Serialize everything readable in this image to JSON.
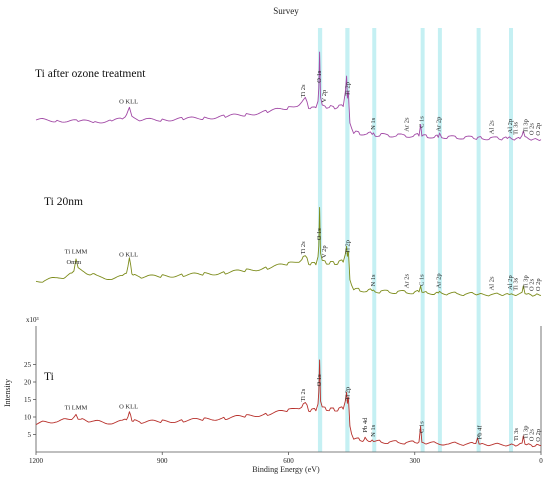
{
  "chart_data": {
    "type": "line",
    "title": "Survey",
    "xlabel": "Binding Energy (eV)",
    "ylabel": "Intensity",
    "yunit": "x10³",
    "xlim": [
      1200,
      0
    ],
    "xticks": [
      1200,
      900,
      600,
      300,
      0
    ],
    "yticks": [
      5,
      10,
      15,
      20,
      25
    ],
    "highlight_bands": [
      [
        530,
        520
      ],
      [
        465,
        455
      ],
      [
        401,
        397
      ],
      [
        286,
        283
      ],
      [
        245,
        240
      ],
      [
        153,
        149
      ],
      [
        76,
        72
      ]
    ],
    "highlight_color": "#bfeef2",
    "series": [
      {
        "name": "Ti after ozone treatment",
        "color": "#a24aa6",
        "x": [
          1200,
          1150,
          1100,
          1060,
          1020,
          995,
          985,
          978,
          972,
          966,
          950,
          900,
          850,
          800,
          750,
          700,
          650,
          600,
          575,
          565,
          560,
          556,
          552,
          545,
          535,
          530,
          528,
          526,
          524,
          520,
          510,
          500,
          490,
          480,
          470,
          465,
          462,
          460,
          458,
          456,
          454,
          450,
          445,
          440,
          430,
          410,
          401,
          398,
          394,
          380,
          360,
          340,
          320,
          300,
          290,
          286,
          283,
          280,
          270,
          250,
          244,
          241,
          236,
          220,
          200,
          180,
          160,
          150,
          140,
          120,
          100,
          90,
          80,
          75,
          70,
          60,
          50,
          45,
          42,
          38,
          30,
          20,
          10,
          0
        ],
        "y": [
          8.0,
          7.9,
          7.6,
          7.5,
          7.8,
          8.2,
          9.6,
          11.5,
          9.2,
          8.4,
          8.0,
          8.1,
          8.3,
          8.6,
          9.0,
          9.6,
          10.4,
          11.5,
          12.5,
          13.4,
          14.8,
          12.9,
          11.6,
          11.3,
          11.9,
          13.0,
          17.5,
          27.0,
          15.0,
          11.9,
          11.8,
          11.7,
          11.6,
          11.8,
          12.3,
          15.5,
          21.0,
          13.8,
          16.5,
          11.2,
          7.6,
          5.2,
          4.6,
          4.4,
          4.2,
          4.0,
          4.3,
          3.9,
          3.8,
          3.7,
          3.6,
          3.6,
          3.5,
          3.5,
          3.8,
          6.4,
          3.7,
          3.4,
          3.3,
          3.3,
          3.3,
          4.0,
          3.2,
          3.1,
          3.0,
          3.0,
          2.9,
          2.9,
          2.8,
          2.8,
          2.7,
          2.7,
          2.8,
          3.1,
          2.7,
          2.6,
          2.7,
          3.6,
          4.8,
          3.3,
          2.6,
          2.5,
          2.4,
          2.4
        ]
      },
      {
        "name": "Ti 20nm",
        "color": "#7d8c1c",
        "x": [
          1200,
          1180,
          1150,
          1130,
          1115,
          1110,
          1105,
          1100,
          1090,
          1075,
          1068,
          1062,
          1050,
          1020,
          995,
          985,
          978,
          972,
          966,
          950,
          900,
          850,
          800,
          750,
          700,
          650,
          600,
          575,
          565,
          560,
          556,
          552,
          545,
          535,
          530,
          528,
          526,
          524,
          520,
          510,
          500,
          490,
          480,
          470,
          465,
          462,
          460,
          458,
          456,
          454,
          450,
          445,
          440,
          430,
          410,
          401,
          398,
          394,
          380,
          360,
          340,
          320,
          300,
          290,
          286,
          283,
          280,
          270,
          250,
          244,
          241,
          236,
          220,
          200,
          180,
          160,
          150,
          140,
          120,
          100,
          90,
          80,
          75,
          70,
          60,
          50,
          45,
          42,
          38,
          30,
          20,
          10,
          0
        ],
        "y": [
          5.5,
          5.9,
          6.5,
          7.0,
          7.8,
          8.8,
          11.8,
          9.8,
          8.4,
          7.8,
          7.3,
          8.1,
          6.8,
          6.5,
          6.9,
          8.3,
          12.0,
          8.1,
          7.2,
          6.9,
          7.1,
          7.4,
          7.7,
          8.1,
          8.7,
          9.5,
          10.6,
          11.5,
          12.3,
          13.4,
          11.9,
          10.9,
          10.5,
          10.8,
          12.2,
          16.2,
          26.3,
          14.2,
          11.2,
          11.0,
          10.9,
          10.8,
          11.0,
          11.5,
          13.0,
          16.0,
          12.4,
          14.6,
          10.3,
          6.4,
          4.2,
          3.5,
          3.3,
          3.1,
          3.0,
          3.2,
          2.9,
          2.8,
          2.7,
          2.6,
          2.6,
          2.5,
          2.5,
          2.7,
          4.2,
          2.6,
          2.4,
          2.3,
          2.3,
          2.3,
          2.8,
          2.2,
          2.1,
          2.1,
          2.0,
          2.0,
          2.0,
          1.9,
          1.9,
          1.8,
          1.8,
          1.9,
          2.1,
          1.8,
          1.8,
          1.9,
          2.8,
          4.0,
          2.4,
          1.8,
          1.7,
          1.7,
          1.6
        ]
      },
      {
        "name": "Ti",
        "color": "#b8312c",
        "x": [
          1200,
          1180,
          1150,
          1130,
          1115,
          1105,
          1100,
          1090,
          1075,
          1050,
          1020,
          995,
          985,
          978,
          972,
          966,
          950,
          900,
          850,
          800,
          750,
          700,
          650,
          600,
          575,
          565,
          560,
          556,
          552,
          545,
          535,
          530,
          528,
          526,
          524,
          520,
          510,
          500,
          490,
          480,
          470,
          465,
          462,
          460,
          458,
          456,
          454,
          450,
          445,
          440,
          430,
          420,
          418,
          414,
          410,
          401,
          398,
          394,
          380,
          360,
          340,
          320,
          300,
          290,
          286,
          283,
          280,
          270,
          250,
          220,
          200,
          180,
          160,
          155,
          151,
          147,
          140,
          120,
          100,
          80,
          70,
          60,
          50,
          45,
          42,
          38,
          30,
          20,
          10,
          0
        ],
        "y": [
          8.1,
          8.5,
          8.9,
          9.2,
          9.6,
          10.4,
          9.7,
          9.2,
          8.9,
          8.6,
          8.4,
          8.7,
          9.6,
          11.1,
          9.3,
          8.8,
          8.6,
          8.7,
          9.0,
          9.3,
          9.7,
          10.2,
          10.9,
          11.8,
          12.8,
          13.3,
          14.6,
          13.0,
          12.1,
          11.8,
          12.2,
          13.3,
          17.6,
          25.9,
          15.0,
          12.5,
          12.3,
          12.2,
          12.1,
          12.2,
          12.6,
          14.2,
          17.4,
          13.6,
          16.0,
          11.7,
          7.7,
          4.9,
          3.9,
          3.7,
          3.5,
          3.4,
          4.4,
          3.3,
          3.2,
          3.3,
          3.1,
          3.0,
          2.9,
          2.8,
          2.8,
          2.7,
          2.7,
          2.9,
          7.3,
          2.8,
          2.6,
          2.5,
          2.5,
          2.4,
          2.4,
          2.3,
          2.3,
          2.6,
          3.8,
          2.5,
          2.2,
          2.2,
          2.1,
          2.1,
          2.0,
          2.0,
          2.1,
          2.9,
          4.2,
          2.6,
          2.0,
          1.9,
          1.8,
          1.8
        ]
      }
    ],
    "annotations": [
      {
        "label": "O 1s",
        "x": 528,
        "series": 0
      },
      {
        "label": "Ti 2p",
        "x": 460,
        "series": 0
      },
      {
        "label": "Ti 2s",
        "x": 566,
        "series": 0
      },
      {
        "label": "V 2p",
        "x": 516,
        "series": 0
      },
      {
        "label": "O KLL",
        "x": 980,
        "series": 0
      },
      {
        "label": "N 1s",
        "x": 399,
        "series": 0
      },
      {
        "label": "Ar 2s",
        "x": 320,
        "series": 0
      },
      {
        "label": "C 1s",
        "x": 284,
        "series": 0
      },
      {
        "label": "Ar 2p",
        "x": 243,
        "series": 0
      },
      {
        "label": "Al 2s",
        "x": 118,
        "series": 0
      },
      {
        "label": "Al 2p",
        "x": 74,
        "series": 0
      },
      {
        "label": "Ti 3s",
        "x": 60,
        "series": 0
      },
      {
        "label": "Ti 3p",
        "x": 37,
        "series": 0
      },
      {
        "label": "O 2s",
        "x": 23,
        "series": 0
      },
      {
        "label": "O 2p",
        "x": 7,
        "series": 0
      },
      {
        "label": "O 1s",
        "x": 528,
        "series": 1
      },
      {
        "label": "Ti 2p",
        "x": 460,
        "series": 1
      },
      {
        "label": "Ti 2s",
        "x": 566,
        "series": 1
      },
      {
        "label": "V 2p",
        "x": 516,
        "series": 1
      },
      {
        "label": "Ti LMM",
        "x": 1105,
        "series": 1
      },
      {
        "label": "O KLL",
        "x": 980,
        "series": 1
      },
      {
        "label": "Omm",
        "x": 1110,
        "series": 1
      },
      {
        "label": "N 1s",
        "x": 399,
        "series": 1
      },
      {
        "label": "Ar 2s",
        "x": 320,
        "series": 1
      },
      {
        "label": "C 1s",
        "x": 284,
        "series": 1
      },
      {
        "label": "Ar 2p",
        "x": 243,
        "series": 1
      },
      {
        "label": "Al 2s",
        "x": 118,
        "series": 1
      },
      {
        "label": "Al 2p",
        "x": 74,
        "series": 1
      },
      {
        "label": "Ti 3s",
        "x": 60,
        "series": 1
      },
      {
        "label": "Ti 3p",
        "x": 37,
        "series": 1
      },
      {
        "label": "O 2s",
        "x": 23,
        "series": 1
      },
      {
        "label": "O 2p",
        "x": 7,
        "series": 1
      },
      {
        "label": "O 1s",
        "x": 528,
        "series": 2
      },
      {
        "label": "Ti 2p",
        "x": 460,
        "series": 2
      },
      {
        "label": "Ti 2s",
        "x": 566,
        "series": 2
      },
      {
        "label": "Ti LMM",
        "x": 1105,
        "series": 2
      },
      {
        "label": "O KLL",
        "x": 980,
        "series": 2
      },
      {
        "label": "Pb 4d",
        "x": 418,
        "series": 2
      },
      {
        "label": "N 1s",
        "x": 399,
        "series": 2
      },
      {
        "label": "C 1s",
        "x": 284,
        "series": 2
      },
      {
        "label": "Pb 4f",
        "x": 146,
        "series": 2
      },
      {
        "label": "Ti 3s",
        "x": 60,
        "series": 2
      },
      {
        "label": "Ti 3p",
        "x": 37,
        "series": 2
      },
      {
        "label": "O 2s",
        "x": 23,
        "series": 2
      },
      {
        "label": "O 2p",
        "x": 7,
        "series": 2
      }
    ]
  }
}
